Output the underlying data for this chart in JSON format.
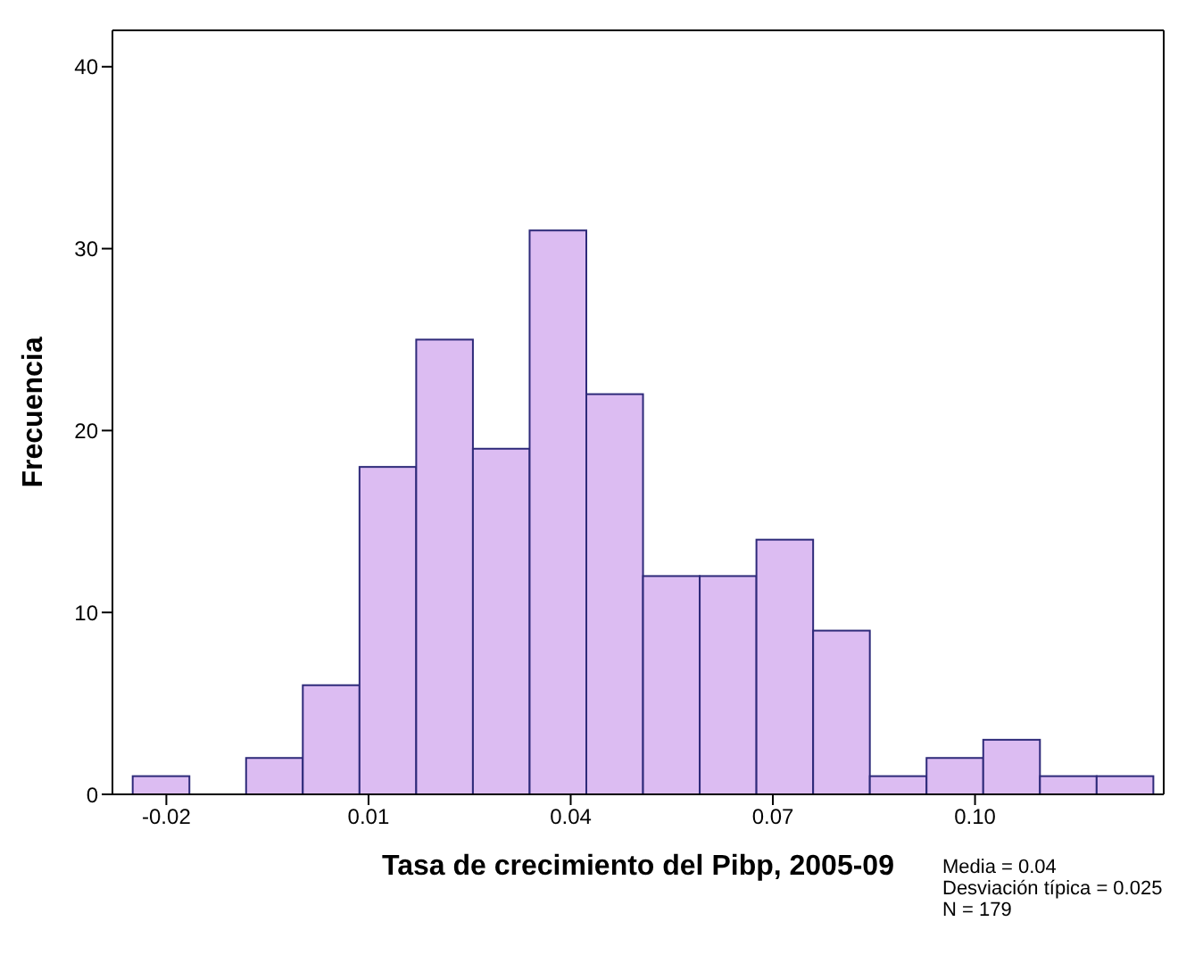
{
  "chart_data": {
    "type": "histogram",
    "xlabel": "Tasa de crecimiento del Pibp, 2005-09",
    "ylabel": "Frecuencia",
    "bins": [
      -0.025,
      -0.0166,
      -0.0082,
      0.0002,
      0.0086,
      0.017,
      0.0254,
      0.0338,
      0.0422,
      0.0506,
      0.059,
      0.0674,
      0.0758,
      0.0842,
      0.0926,
      0.101,
      0.1094,
      0.1178,
      0.1262
    ],
    "values": [
      1,
      0,
      2,
      6,
      18,
      25,
      19,
      31,
      22,
      12,
      12,
      14,
      9,
      1,
      2,
      3,
      1,
      1
    ],
    "color": "#dcbcf2",
    "xlim": [
      -0.028,
      0.128
    ],
    "xticks": [
      -0.02,
      0.01,
      0.04,
      0.07,
      {
        "value": 0.1,
        "label": "0.10"
      }
    ],
    "ylim": [
      0,
      42
    ],
    "yticks": [
      0,
      10,
      20,
      30,
      40
    ],
    "grid": false,
    "annotations": [
      "Media = 0.04",
      "Desviación típica = 0.025",
      "N = 179"
    ]
  }
}
